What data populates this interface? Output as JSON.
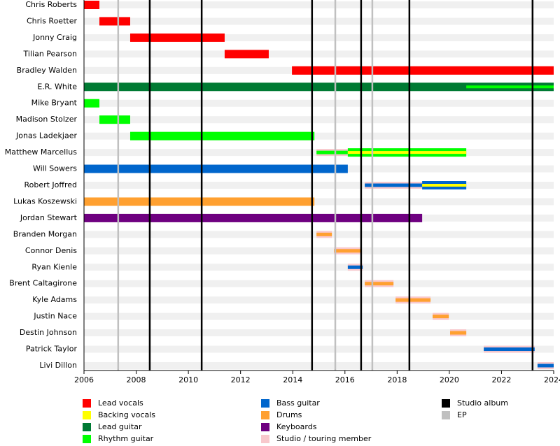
{
  "chart_data": {
    "type": "timeline",
    "xlim": [
      2006,
      2024
    ],
    "xticks": [
      2006,
      2008,
      2010,
      2012,
      2014,
      2016,
      2018,
      2020,
      2022,
      2024
    ],
    "legend": [
      {
        "label": "Lead vocals",
        "color": "#ff0000"
      },
      {
        "label": "Backing vocals",
        "color": "#ffff00"
      },
      {
        "label": "Lead guitar",
        "color": "#007a33"
      },
      {
        "label": "Rhythm guitar",
        "color": "#00ff00"
      },
      {
        "label": "Bass guitar",
        "color": "#0066cc"
      },
      {
        "label": "Drums",
        "color": "#ffa030"
      },
      {
        "label": "Keyboards",
        "color": "#6e0080"
      },
      {
        "label": "Studio / touring member",
        "color": "#f8c8cc"
      },
      {
        "label": "Studio album",
        "color": "#000000"
      },
      {
        "label": "EP",
        "color": "#c0c0c0"
      }
    ],
    "rows": [
      {
        "name": "Chris Roberts",
        "spans": [
          {
            "role": "Lead vocals",
            "start": 2006,
            "end": 2006.59
          }
        ]
      },
      {
        "name": "Chris Roetter",
        "spans": [
          {
            "role": "Lead vocals",
            "start": 2006.59,
            "end": 2007.77
          }
        ]
      },
      {
        "name": "Jonny Craig",
        "spans": [
          {
            "role": "Lead vocals",
            "start": 2007.77,
            "end": 2011.39
          }
        ]
      },
      {
        "name": "Tilian Pearson",
        "spans": [
          {
            "role": "Lead vocals",
            "start": 2011.39,
            "end": 2013.08
          }
        ]
      },
      {
        "name": "Bradley Walden",
        "spans": [
          {
            "role": "Lead vocals",
            "start": 2013.97,
            "end": 2024
          }
        ]
      },
      {
        "name": "E.R. White",
        "spans": [
          {
            "role": "Lead guitar",
            "start": 2006,
            "end": 2024
          },
          {
            "role": "Rhythm guitar",
            "start": 2020.65,
            "end": 2024,
            "stripe": true
          }
        ]
      },
      {
        "name": "Mike Bryant",
        "spans": [
          {
            "role": "Rhythm guitar",
            "start": 2006,
            "end": 2006.59
          }
        ]
      },
      {
        "name": "Madison Stolzer",
        "spans": [
          {
            "role": "Rhythm guitar",
            "start": 2006.59,
            "end": 2007.77
          }
        ]
      },
      {
        "name": "Jonas Ladekjaer",
        "spans": [
          {
            "role": "Rhythm guitar",
            "start": 2007.77,
            "end": 2014.83
          }
        ]
      },
      {
        "name": "Matthew Marcellus",
        "spans": [
          {
            "role": "Rhythm guitar",
            "start": 2014.91,
            "end": 2016.11,
            "touring": true
          },
          {
            "role": "Rhythm guitar",
            "start": 2016.11,
            "end": 2020.65
          },
          {
            "role": "Backing vocals",
            "start": 2016.11,
            "end": 2020.65,
            "stripe": true
          }
        ]
      },
      {
        "name": "Will Sowers",
        "spans": [
          {
            "role": "Bass guitar",
            "start": 2006,
            "end": 2016.11
          }
        ]
      },
      {
        "name": "Robert Joffred",
        "spans": [
          {
            "role": "Bass guitar",
            "start": 2016.76,
            "end": 2018.96,
            "touring": true
          },
          {
            "role": "Bass guitar",
            "start": 2018.96,
            "end": 2020.65
          },
          {
            "role": "Backing vocals",
            "start": 2018.96,
            "end": 2020.65,
            "stripe": true
          }
        ]
      },
      {
        "name": "Lukas Koszewski",
        "spans": [
          {
            "role": "Drums",
            "start": 2006,
            "end": 2014.83
          }
        ]
      },
      {
        "name": "Jordan Stewart",
        "spans": [
          {
            "role": "Keyboards",
            "start": 2006,
            "end": 2018.96
          }
        ]
      },
      {
        "name": "Branden Morgan",
        "spans": [
          {
            "role": "Drums",
            "start": 2014.91,
            "end": 2015.5,
            "touring": true
          }
        ]
      },
      {
        "name": "Connor Denis",
        "spans": [
          {
            "role": "Drums",
            "start": 2015.58,
            "end": 2016.65,
            "touring": true
          }
        ]
      },
      {
        "name": "Ryan Kienle",
        "spans": [
          {
            "role": "Bass guitar",
            "start": 2016.11,
            "end": 2016.68,
            "touring": true
          }
        ]
      },
      {
        "name": "Brent Caltagirone",
        "spans": [
          {
            "role": "Drums",
            "start": 2016.76,
            "end": 2017.86,
            "touring": true
          }
        ]
      },
      {
        "name": "Kyle Adams",
        "spans": [
          {
            "role": "Drums",
            "start": 2017.94,
            "end": 2019.28,
            "touring": true
          }
        ]
      },
      {
        "name": "Justin Nace",
        "spans": [
          {
            "role": "Drums",
            "start": 2019.36,
            "end": 2019.98,
            "touring": true
          }
        ]
      },
      {
        "name": "Destin Johnson",
        "spans": [
          {
            "role": "Drums",
            "start": 2020.03,
            "end": 2020.65,
            "touring": true
          }
        ]
      },
      {
        "name": "Patrick Taylor",
        "spans": [
          {
            "role": "Bass guitar",
            "start": 2021.32,
            "end": 2023.27,
            "touring": true
          }
        ]
      },
      {
        "name": "Livi Dillon",
        "spans": [
          {
            "role": "Bass guitar",
            "start": 2023.38,
            "end": 2024,
            "touring": true
          }
        ]
      }
    ],
    "events": [
      {
        "kind": "EP",
        "x": 2007.31
      },
      {
        "kind": "Studio album",
        "x": 2008.52
      },
      {
        "kind": "Studio album",
        "x": 2010.51
      },
      {
        "kind": "Studio album",
        "x": 2014.74
      },
      {
        "kind": "EP",
        "x": 2015.63
      },
      {
        "kind": "Studio album",
        "x": 2016.62
      },
      {
        "kind": "EP",
        "x": 2017.05
      },
      {
        "kind": "Studio album",
        "x": 2018.47
      },
      {
        "kind": "Studio album",
        "x": 2023.19
      }
    ]
  }
}
